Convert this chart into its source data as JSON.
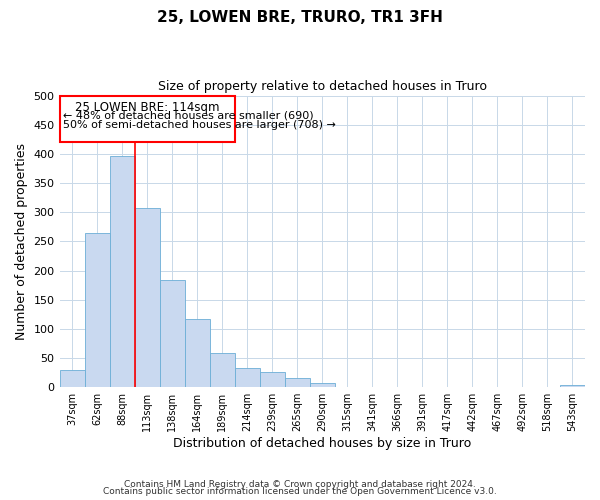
{
  "title": "25, LOWEN BRE, TRURO, TR1 3FH",
  "subtitle": "Size of property relative to detached houses in Truro",
  "xlabel": "Distribution of detached houses by size in Truro",
  "ylabel": "Number of detached properties",
  "bar_color": "#c9d9f0",
  "bar_edge_color": "#6baed6",
  "categories": [
    "37sqm",
    "62sqm",
    "88sqm",
    "113sqm",
    "138sqm",
    "164sqm",
    "189sqm",
    "214sqm",
    "239sqm",
    "265sqm",
    "290sqm",
    "315sqm",
    "341sqm",
    "366sqm",
    "391sqm",
    "417sqm",
    "442sqm",
    "467sqm",
    "492sqm",
    "518sqm",
    "543sqm"
  ],
  "values": [
    30,
    265,
    397,
    308,
    183,
    117,
    59,
    33,
    26,
    15,
    7,
    0,
    0,
    0,
    0,
    0,
    0,
    0,
    0,
    0,
    3
  ],
  "ylim": [
    0,
    500
  ],
  "yticks": [
    0,
    50,
    100,
    150,
    200,
    250,
    300,
    350,
    400,
    450,
    500
  ],
  "property_line_x": 2.5,
  "annotation_line1": "25 LOWEN BRE: 114sqm",
  "annotation_line2": "← 48% of detached houses are smaller (690)",
  "annotation_line3": "50% of semi-detached houses are larger (708) →",
  "footer_line1": "Contains HM Land Registry data © Crown copyright and database right 2024.",
  "footer_line2": "Contains public sector information licensed under the Open Government Licence v3.0.",
  "background_color": "#ffffff",
  "grid_color": "#c8d8e8"
}
